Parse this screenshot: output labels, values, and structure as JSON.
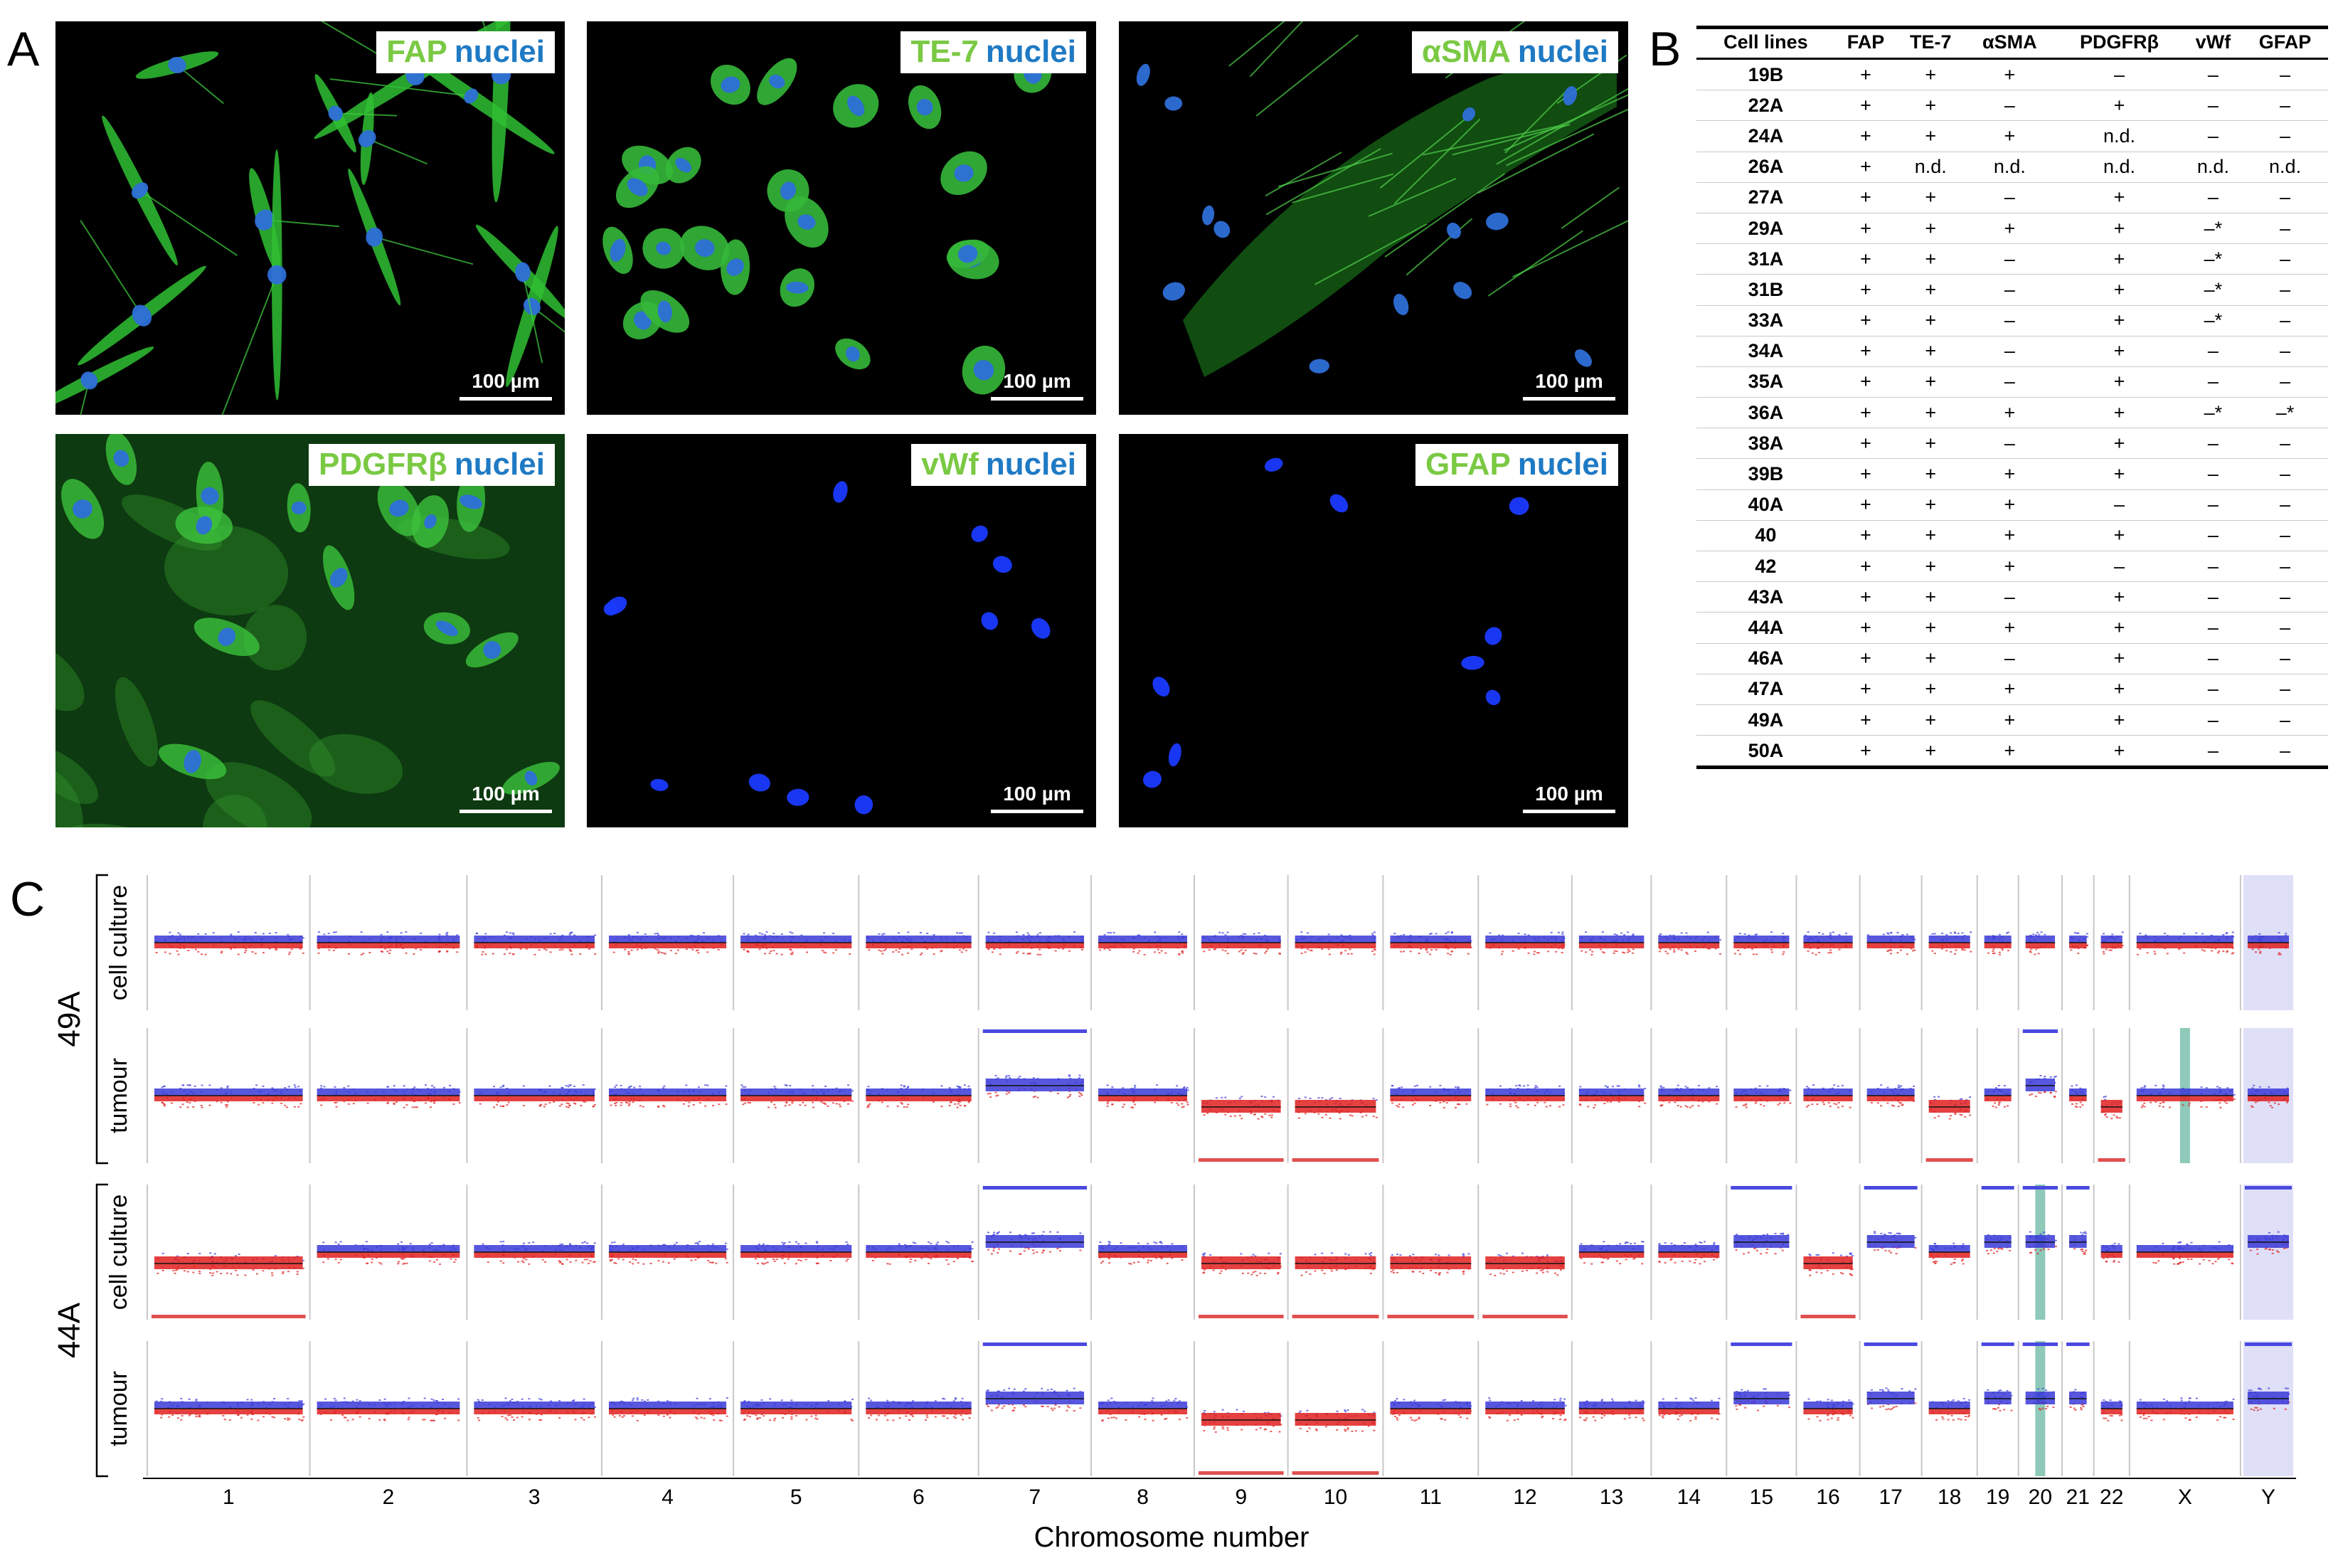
{
  "panel_labels": {
    "a": "A",
    "b": "B",
    "c": "C"
  },
  "micrographs": [
    {
      "marker": "FAP",
      "stain": "nuclei",
      "scale": "100 µm"
    },
    {
      "marker": "TE-7",
      "stain": "nuclei",
      "scale": "100 µm"
    },
    {
      "marker": "αSMA",
      "stain": "nuclei",
      "scale": "100 µm"
    },
    {
      "marker": "PDGFRβ",
      "stain": "nuclei",
      "scale": "100 µm"
    },
    {
      "marker": "vWf",
      "stain": "nuclei",
      "scale": "100 µm"
    },
    {
      "marker": "GFAP",
      "stain": "nuclei",
      "scale": "100 µm"
    }
  ],
  "marker_table": {
    "headers": [
      "Cell lines",
      "FAP",
      "TE-7",
      "αSMA",
      "PDGFRβ",
      "vWf",
      "GFAP"
    ],
    "rows": [
      [
        "19B",
        "+",
        "+",
        "+",
        "–",
        "–",
        "–"
      ],
      [
        "22A",
        "+",
        "+",
        "–",
        "+",
        "–",
        "–"
      ],
      [
        "24A",
        "+",
        "+",
        "+",
        "n.d.",
        "–",
        "–"
      ],
      [
        "26A",
        "+",
        "n.d.",
        "n.d.",
        "n.d.",
        "n.d.",
        "n.d."
      ],
      [
        "27A",
        "+",
        "+",
        "–",
        "+",
        "–",
        "–"
      ],
      [
        "29A",
        "+",
        "+",
        "+",
        "+",
        "–*",
        "–"
      ],
      [
        "31A",
        "+",
        "+",
        "–",
        "+",
        "–*",
        "–"
      ],
      [
        "31B",
        "+",
        "+",
        "–",
        "+",
        "–*",
        "–"
      ],
      [
        "33A",
        "+",
        "+",
        "–",
        "+",
        "–*",
        "–"
      ],
      [
        "34A",
        "+",
        "+",
        "–",
        "+",
        "–",
        "–"
      ],
      [
        "35A",
        "+",
        "+",
        "–",
        "+",
        "–",
        "–"
      ],
      [
        "36A",
        "+",
        "+",
        "+",
        "+",
        "–*",
        "–*"
      ],
      [
        "38A",
        "+",
        "+",
        "–",
        "+",
        "–",
        "–"
      ],
      [
        "39B",
        "+",
        "+",
        "+",
        "+",
        "–",
        "–"
      ],
      [
        "40A",
        "+",
        "+",
        "+",
        "–",
        "–",
        "–"
      ],
      [
        "40",
        "+",
        "+",
        "+",
        "+",
        "–",
        "–"
      ],
      [
        "42",
        "+",
        "+",
        "+",
        "–",
        "–",
        "–"
      ],
      [
        "43A",
        "+",
        "+",
        "–",
        "+",
        "–",
        "–"
      ],
      [
        "44A",
        "+",
        "+",
        "+",
        "+",
        "–",
        "–"
      ],
      [
        "46A",
        "+",
        "+",
        "–",
        "+",
        "–",
        "–"
      ],
      [
        "47A",
        "+",
        "+",
        "+",
        "+",
        "–",
        "–"
      ],
      [
        "49A",
        "+",
        "+",
        "+",
        "+",
        "–",
        "–"
      ],
      [
        "50A",
        "+",
        "+",
        "+",
        "+",
        "–",
        "–"
      ]
    ]
  },
  "chart_data": {
    "type": "scatter",
    "xlabel": "Chromosome number",
    "chromosomes": [
      "1",
      "2",
      "3",
      "4",
      "5",
      "6",
      "7",
      "8",
      "9",
      "10",
      "11",
      "12",
      "13",
      "14",
      "15",
      "16",
      "17",
      "18",
      "19",
      "20",
      "21",
      "22",
      "X",
      "Y"
    ],
    "samples": [
      {
        "id": "49A",
        "rows": [
          {
            "label": "cell culture",
            "gain": [],
            "loss": [],
            "highlight": []
          },
          {
            "label": "tumour",
            "gain": [
              "7",
              "20"
            ],
            "loss": [
              "9",
              "10",
              "18",
              "22"
            ],
            "highlight": [
              "X"
            ]
          }
        ]
      },
      {
        "id": "44A",
        "rows": [
          {
            "label": "cell culture",
            "gain": [
              "7",
              "15",
              "17",
              "19",
              "20",
              "21",
              "Y"
            ],
            "loss": [
              "1",
              "9",
              "10",
              "11",
              "12",
              "16"
            ],
            "highlight": [
              "20"
            ]
          },
          {
            "label": "tumour",
            "gain": [
              "7",
              "15",
              "17",
              "19",
              "20",
              "21",
              "Y"
            ],
            "loss": [
              "9",
              "10"
            ],
            "highlight": [
              "20"
            ]
          }
        ]
      }
    ],
    "colors": {
      "gain": "#3a3ad8",
      "loss": "#e02020",
      "highlight": "#8ec9b9",
      "sex_band": "#c9c9f4"
    }
  }
}
